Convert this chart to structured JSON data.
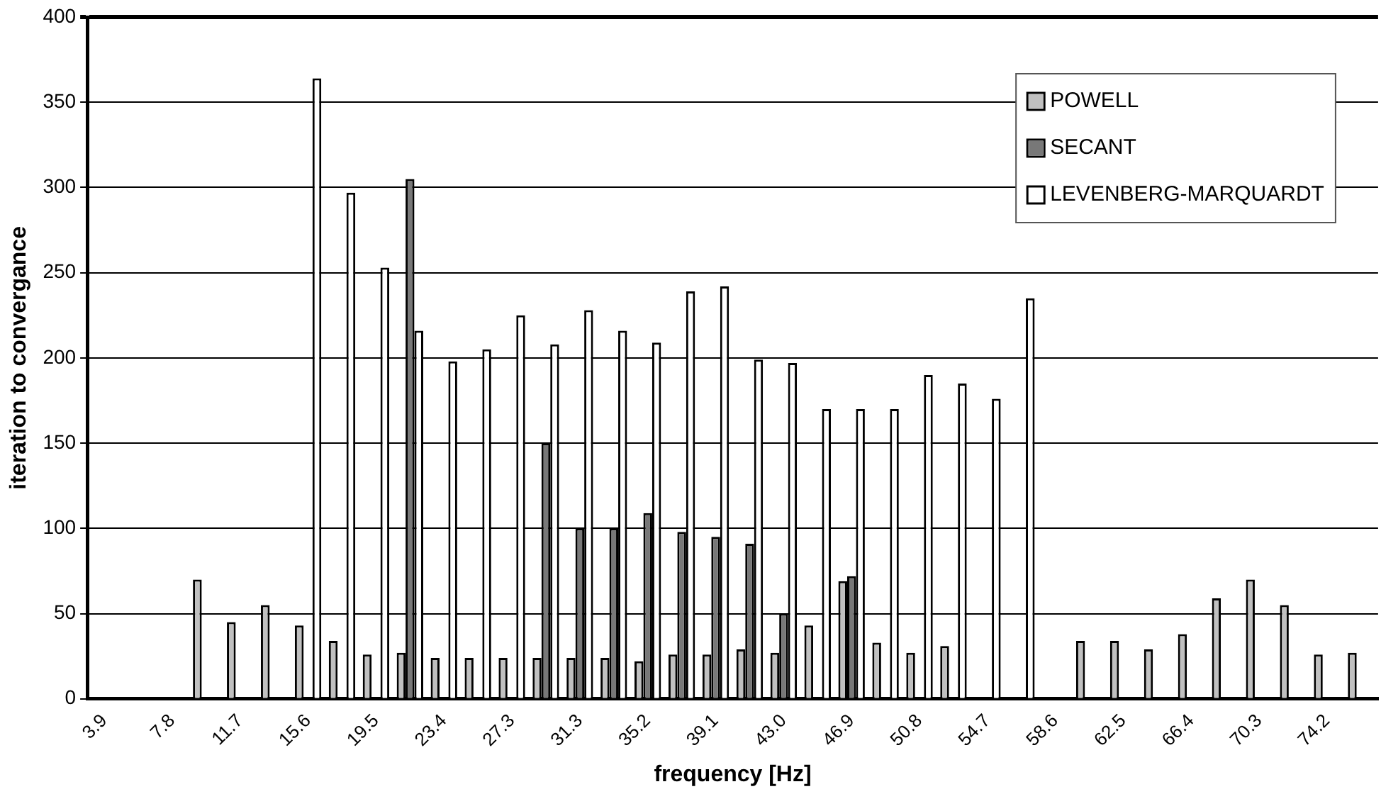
{
  "chart_data": {
    "type": "bar",
    "xlabel": "frequency [Hz]",
    "ylabel": "iteration to convergance",
    "categories": [
      "3.9",
      null,
      "7.8",
      null,
      "11.7",
      null,
      "15.6",
      null,
      "19.5",
      null,
      "23.4",
      null,
      "27.3",
      null,
      "31.3",
      null,
      "35.2",
      null,
      "39.1",
      null,
      "43.0",
      null,
      "46.9",
      null,
      "50.8",
      null,
      "54.7",
      null,
      "58.6",
      null,
      "62.5",
      null,
      "66.4",
      null,
      "70.3",
      null,
      "74.2",
      null
    ],
    "series": [
      {
        "name": "POWELL",
        "color": "#c0c0c0",
        "values": [
          null,
          null,
          null,
          70,
          45,
          55,
          43,
          34,
          26,
          27,
          24,
          24,
          24,
          24,
          24,
          24,
          22,
          26,
          26,
          29,
          27,
          43,
          69,
          33,
          27,
          31,
          null,
          null,
          null,
          34,
          34,
          29,
          38,
          59,
          70,
          55,
          26,
          27
        ]
      },
      {
        "name": "SECANT",
        "color": "#787878",
        "values": [
          null,
          null,
          null,
          null,
          null,
          null,
          null,
          null,
          null,
          305,
          null,
          null,
          null,
          150,
          100,
          100,
          109,
          98,
          95,
          91,
          50,
          null,
          72,
          null,
          null,
          null,
          null,
          null,
          null,
          null,
          null,
          null,
          null,
          null,
          null,
          null,
          null,
          null
        ]
      },
      {
        "name": "LEVENBERG-MARQUARDT",
        "color": "#ffffff",
        "values": [
          null,
          null,
          null,
          null,
          null,
          null,
          364,
          297,
          253,
          216,
          198,
          205,
          225,
          208,
          228,
          216,
          209,
          239,
          242,
          199,
          197,
          170,
          170,
          170,
          190,
          185,
          176,
          235,
          null,
          null,
          null,
          null,
          null,
          null,
          null,
          null,
          null,
          null
        ]
      }
    ],
    "ylim": [
      0,
      400
    ],
    "yticks": [
      0,
      50,
      100,
      150,
      200,
      250,
      300,
      350,
      400
    ],
    "grid": "y",
    "legend": "top right"
  }
}
